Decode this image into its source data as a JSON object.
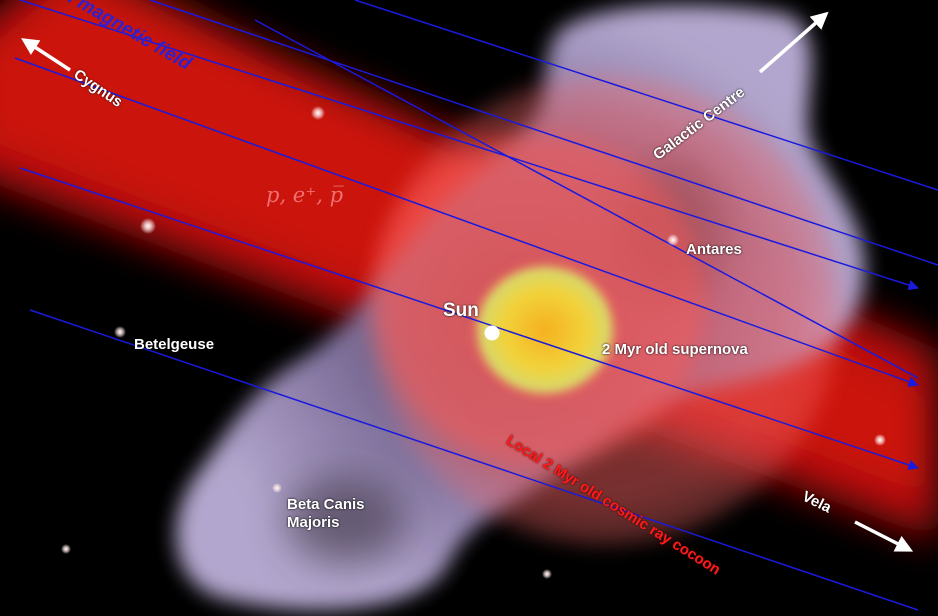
{
  "labels": {
    "magnetic_field": "... magnetic field",
    "cygnus": "Cygnus",
    "galactic_centre": "Galactic Centre",
    "particles": "p, e⁺, p̅",
    "antares": "Antares",
    "sun": "Sun",
    "supernova": "2 Myr old supernova",
    "betelgeuse": "Betelgeuse",
    "cocoon": "Local 2 Myr old cosmic ray cocoon",
    "vela": "Vela",
    "beta_canis_line1": "Beta Canis",
    "beta_canis_line2": "Majoris"
  },
  "colors": {
    "field_lines": "#1a1adf",
    "cocoon": "#e01010",
    "cloud": "#b9a9d6",
    "supernova_core": "#f0c020",
    "label": "#ffffff",
    "field_label": "#3020d0",
    "particle_label": "#f07070"
  }
}
